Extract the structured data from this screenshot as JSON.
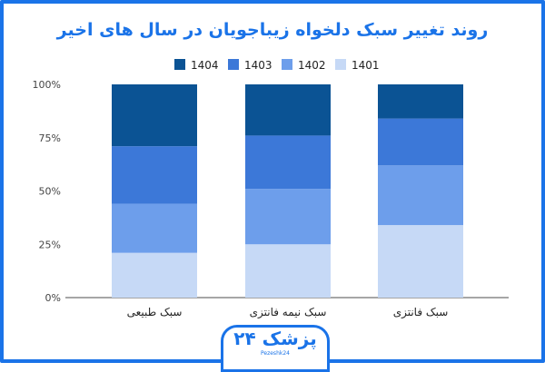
{
  "chart_data": {
    "type": "bar",
    "stacked": "percent",
    "title": "روند تغییر سبک دلخواه زیباجویان در سال های اخیر",
    "categories": [
      "سبک طبیعی",
      "سبک نیمه فانتزی",
      "سبک فانتزی"
    ],
    "series": [
      {
        "name": "1401",
        "values": [
          21,
          25,
          34
        ],
        "color": "#c6d9f6"
      },
      {
        "name": "1402",
        "values": [
          23,
          26,
          28
        ],
        "color": "#6d9eeb"
      },
      {
        "name": "1403",
        "values": [
          27,
          25,
          22
        ],
        "color": "#3c78d8"
      },
      {
        "name": "1404",
        "values": [
          29,
          24,
          16
        ],
        "color": "#0b5394"
      }
    ],
    "yticks": [
      "0%",
      "25%",
      "50%",
      "75%",
      "100%"
    ],
    "ylim": [
      0,
      100
    ],
    "legend": "top",
    "grid": false
  },
  "logo": {
    "text": "پزشک ۲۴",
    "sub": "Pezeshk24"
  }
}
